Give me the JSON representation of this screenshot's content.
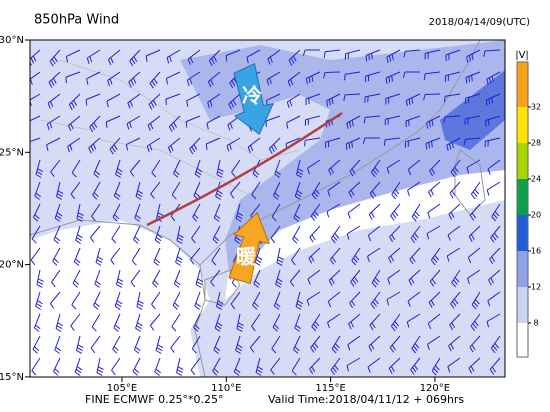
{
  "header": {
    "title": "850hPa Wind",
    "time": "2018/04/14/09(UTC)"
  },
  "map": {
    "lat_labels": [
      "30°N",
      "25°N",
      "20°N",
      "15°N"
    ],
    "lon_labels": [
      "105°E",
      "110°E",
      "115°E",
      "120°E"
    ],
    "annotations": [
      "冷",
      "暖"
    ]
  },
  "colorbar": {
    "label": "|V|",
    "ticks": [
      8,
      12,
      16,
      20,
      24,
      28,
      32
    ]
  },
  "footer": {
    "model": "FINE ECMWF 0.25°*0.25°",
    "valid": "Valid Time:2018/04/11/12 + 069hrs"
  }
}
